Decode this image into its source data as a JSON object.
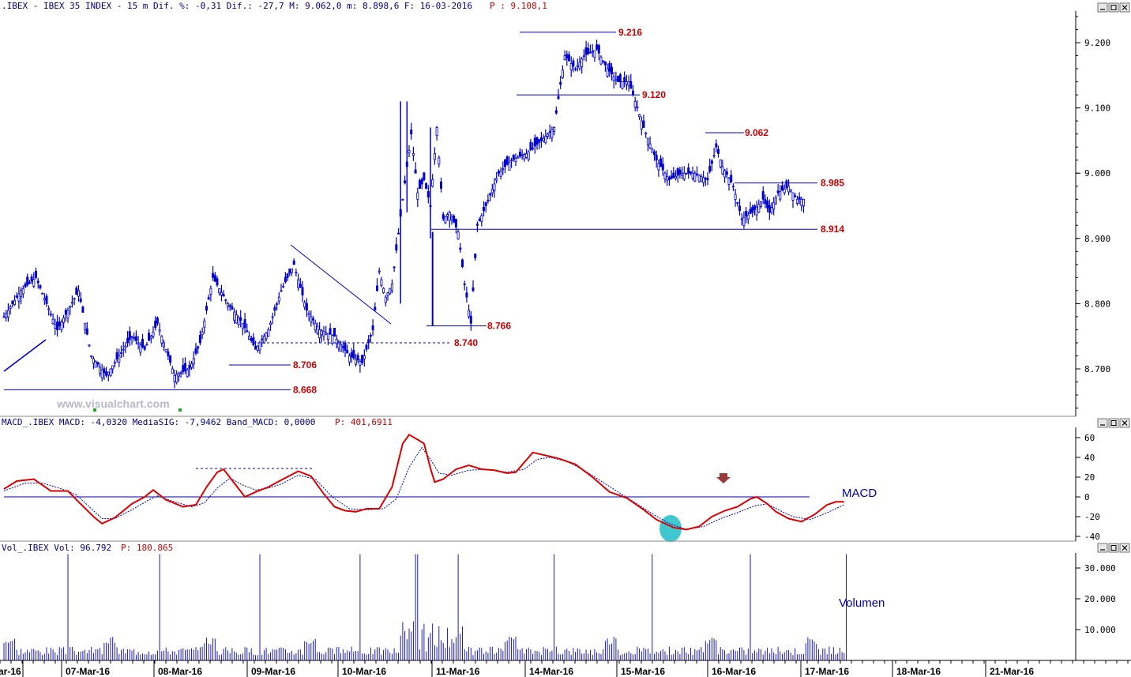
{
  "colors": {
    "bar": "#0000cc",
    "line": "#0000cc",
    "text_blue": "#000080",
    "text_red": "#cc0000",
    "macd": "#dd0000",
    "signal": "#0000aa",
    "highlight": "#40c8d0",
    "arrow": "#9b3a3a",
    "grid": "#cccccc"
  },
  "price_panel": {
    "header_left": ".IBEX - IBEX 35 INDEX -  15 m Dif. %: -0,31 Dif.: -27,7 M: 9.062,0 m: 8.898,6 F: 16-03-2016",
    "header_right": "P : 9.108,1",
    "watermark": "www.visualchart.com",
    "y_ticks": [
      "9.200",
      "9.100",
      "9.000",
      "8.900",
      "8.800",
      "8.700"
    ],
    "levels": [
      "9.216",
      "9.120",
      "9.062",
      "8.985",
      "8.914",
      "8.766",
      "8.740",
      "8.706",
      "8.668"
    ]
  },
  "macd_panel": {
    "header_left": "MACD_.IBEX MACD: -4,0320 MediaSIG: -7,9462 Band_MACD: 0,0000",
    "header_right": "P: 401,6911",
    "label": "MACD",
    "y_ticks": [
      "60",
      "40",
      "20",
      "0",
      "-20",
      "-40"
    ]
  },
  "vol_panel": {
    "header_left": "Vol_.IBEX Vol: 96.792",
    "header_right": "P: 180.865",
    "label": "Volumen",
    "y_ticks": [
      "30.000",
      "20.000",
      "10.000"
    ]
  },
  "x_axis": {
    "labels": [
      "ar-16",
      "07-Mar-16",
      "08-Mar-16",
      "09-Mar-16",
      "10-Mar-16",
      "11-Mar-16",
      "14-Mar-16",
      "15-Mar-16",
      "16-Mar-16",
      "17-Mar-16",
      "18-Mar-16",
      "21-Mar-16"
    ]
  },
  "chart_data": [
    {
      "type": "bar",
      "ylabel": "",
      "ylim": [
        8620,
        9240
      ],
      "categories": [
        "07-Mar-16",
        "08-Mar-16",
        "09-Mar-16",
        "10-Mar-16",
        "11-Mar-16",
        "14-Mar-16",
        "15-Mar-16",
        "16-Mar-16"
      ],
      "price_path": [
        [
          0,
          8.78
        ],
        [
          8,
          8.82
        ],
        [
          15,
          8.84
        ],
        [
          25,
          8.76
        ],
        [
          35,
          8.82
        ],
        [
          41,
          8.72
        ],
        [
          48,
          8.69
        ],
        [
          54,
          8.72
        ],
        [
          60,
          8.75
        ],
        [
          66,
          8.73
        ],
        [
          72,
          8.77
        ],
        [
          80,
          8.69
        ],
        [
          87,
          8.7
        ],
        [
          92,
          8.74
        ],
        [
          98,
          8.84
        ],
        [
          105,
          8.8
        ],
        [
          112,
          8.77
        ],
        [
          118,
          8.73
        ],
        [
          124,
          8.76
        ],
        [
          130,
          8.82
        ],
        [
          136,
          8.86
        ],
        [
          142,
          8.79
        ],
        [
          148,
          8.76
        ],
        [
          155,
          8.75
        ],
        [
          162,
          8.72
        ],
        [
          168,
          8.71
        ],
        [
          173,
          8.76
        ],
        [
          176,
          8.85
        ],
        [
          179,
          8.81
        ],
        [
          182,
          8.83
        ],
        [
          187,
          8.96
        ],
        [
          191,
          9.06
        ],
        [
          194,
          8.97
        ],
        [
          197,
          8.99
        ],
        [
          200,
          8.95
        ],
        [
          203,
          9.07
        ],
        [
          206,
          8.93
        ],
        [
          209,
          8.94
        ],
        [
          213,
          8.91
        ],
        [
          216,
          8.83
        ],
        [
          219,
          8.77
        ],
        [
          222,
          8.92
        ],
        [
          226,
          8.95
        ],
        [
          232,
          9.0
        ],
        [
          238,
          9.02
        ],
        [
          245,
          9.03
        ],
        [
          252,
          9.05
        ],
        [
          258,
          9.07
        ],
        [
          263,
          9.18
        ],
        [
          268,
          9.16
        ],
        [
          272,
          9.18
        ],
        [
          278,
          9.19
        ],
        [
          283,
          9.16
        ],
        [
          288,
          9.14
        ],
        [
          293,
          9.14
        ],
        [
          296,
          9.11
        ],
        [
          300,
          9.07
        ],
        [
          306,
          9.02
        ],
        [
          312,
          8.99
        ],
        [
          318,
          9.0
        ],
        [
          324,
          9.0
        ],
        [
          330,
          8.99
        ],
        [
          334,
          9.04
        ],
        [
          337,
          9.01
        ],
        [
          342,
          8.98
        ],
        [
          346,
          8.93
        ],
        [
          351,
          8.94
        ],
        [
          356,
          8.96
        ],
        [
          359,
          8.94
        ],
        [
          363,
          8.97
        ],
        [
          368,
          8.98
        ],
        [
          372,
          8.96
        ],
        [
          375,
          8.96
        ]
      ],
      "levels": [
        9.216,
        9.12,
        9.062,
        8.985,
        8.914,
        8.766,
        8.74,
        8.706,
        8.668
      ]
    },
    {
      "type": "line",
      "ylabel": "",
      "ylim": [
        -50,
        70
      ],
      "series": [
        {
          "values": [
            [
              0,
              8
            ],
            [
              6,
              16
            ],
            [
              14,
              18
            ],
            [
              22,
              6
            ],
            [
              30,
              6
            ],
            [
              35,
              -5
            ],
            [
              42,
              -20
            ],
            [
              46,
              -27
            ],
            [
              52,
              -21
            ],
            [
              60,
              -7
            ],
            [
              66,
              0
            ],
            [
              70,
              7
            ],
            [
              76,
              -3
            ],
            [
              84,
              -10
            ],
            [
              90,
              -8
            ],
            [
              95,
              10
            ],
            [
              100,
              25
            ],
            [
              103,
              28
            ],
            [
              108,
              14
            ],
            [
              113,
              0
            ],
            [
              118,
              5
            ],
            [
              124,
              10
            ],
            [
              130,
              17
            ],
            [
              138,
              26
            ],
            [
              144,
              21
            ],
            [
              150,
              3
            ],
            [
              155,
              -10
            ],
            [
              160,
              -14
            ],
            [
              165,
              -15
            ],
            [
              170,
              -12
            ],
            [
              176,
              -12
            ],
            [
              182,
              10
            ],
            [
              187,
              54
            ],
            [
              190,
              63
            ],
            [
              194,
              58
            ],
            [
              197,
              54
            ],
            [
              200,
              29
            ],
            [
              202,
              15
            ],
            [
              206,
              18
            ],
            [
              212,
              28
            ],
            [
              218,
              32
            ],
            [
              224,
              28
            ],
            [
              230,
              27
            ],
            [
              236,
              24
            ],
            [
              240,
              25
            ],
            [
              244,
              35
            ],
            [
              248,
              45
            ],
            [
              254,
              42
            ],
            [
              260,
              39
            ],
            [
              268,
              33
            ],
            [
              276,
              20
            ],
            [
              284,
              5
            ],
            [
              292,
              -1
            ],
            [
              300,
              -13
            ],
            [
              306,
              -23
            ],
            [
              314,
              -31
            ],
            [
              320,
              -33
            ],
            [
              326,
              -30
            ],
            [
              332,
              -20
            ],
            [
              338,
              -14
            ],
            [
              344,
              -10
            ],
            [
              350,
              -2
            ],
            [
              353,
              0
            ],
            [
              358,
              -7
            ],
            [
              362,
              -15
            ],
            [
              368,
              -22
            ],
            [
              374,
              -25
            ],
            [
              380,
              -18
            ],
            [
              386,
              -8
            ],
            [
              390,
              -5
            ],
            [
              394,
              -5
            ]
          ]
        },
        {
          "values": [
            [
              0,
              6
            ],
            [
              10,
              14
            ],
            [
              18,
              14
            ],
            [
              26,
              9
            ],
            [
              34,
              2
            ],
            [
              40,
              -10
            ],
            [
              46,
              -22
            ],
            [
              52,
              -22
            ],
            [
              60,
              -13
            ],
            [
              68,
              -3
            ],
            [
              72,
              1
            ],
            [
              80,
              -5
            ],
            [
              88,
              -10
            ],
            [
              94,
              -6
            ],
            [
              100,
              9
            ],
            [
              106,
              19
            ],
            [
              112,
              12
            ],
            [
              118,
              7
            ],
            [
              124,
              9
            ],
            [
              130,
              13
            ],
            [
              138,
              22
            ],
            [
              146,
              18
            ],
            [
              154,
              0
            ],
            [
              162,
              -12
            ],
            [
              170,
              -13
            ],
            [
              178,
              -12
            ],
            [
              184,
              -2
            ],
            [
              190,
              30
            ],
            [
              196,
              50
            ],
            [
              200,
              38
            ],
            [
              204,
              24
            ],
            [
              210,
              22
            ],
            [
              218,
              27
            ],
            [
              226,
              28
            ],
            [
              236,
              25
            ],
            [
              244,
              28
            ],
            [
              250,
              38
            ],
            [
              256,
              40
            ],
            [
              264,
              36
            ],
            [
              272,
              27
            ],
            [
              280,
              16
            ],
            [
              288,
              5
            ],
            [
              296,
              -6
            ],
            [
              304,
              -17
            ],
            [
              312,
              -27
            ],
            [
              320,
              -33
            ],
            [
              328,
              -30
            ],
            [
              336,
              -22
            ],
            [
              344,
              -16
            ],
            [
              352,
              -9
            ],
            [
              358,
              -7
            ],
            [
              364,
              -14
            ],
            [
              370,
              -20
            ],
            [
              378,
              -23
            ],
            [
              386,
              -16
            ],
            [
              394,
              -8
            ]
          ]
        }
      ]
    },
    {
      "type": "bar",
      "ylabel": "",
      "ylim": [
        0,
        36500
      ],
      "spikes": [
        [
          30,
          34500
        ],
        [
          73,
          34500
        ],
        [
          120,
          34500
        ],
        [
          167,
          34500
        ],
        [
          193,
          34500
        ],
        [
          194,
          34500
        ],
        [
          213,
          34500
        ],
        [
          258,
          34500
        ],
        [
          304,
          34500
        ],
        [
          350,
          34500
        ],
        [
          395,
          34500
        ]
      ]
    }
  ]
}
